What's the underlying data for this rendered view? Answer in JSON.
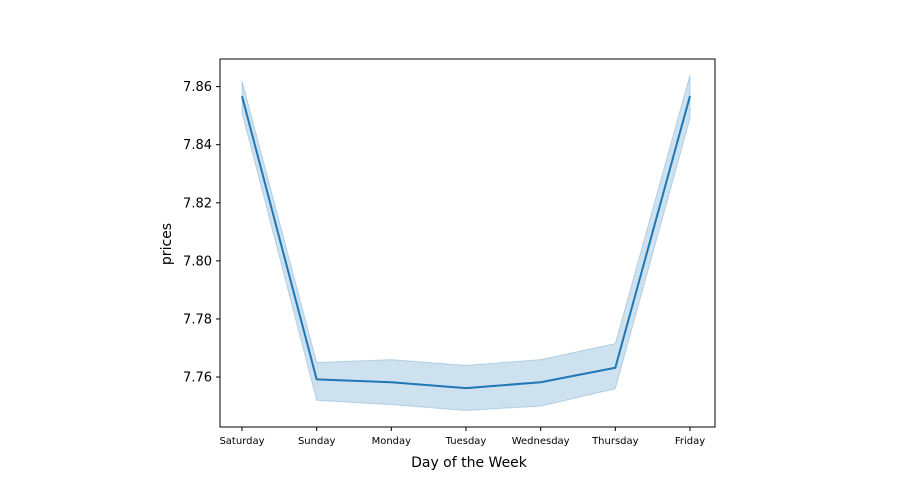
{
  "chart_data": {
    "type": "line",
    "title": "",
    "xlabel": "Day of the Week",
    "ylabel": "prices",
    "categories": [
      "Saturday",
      "Sunday",
      "Monday",
      "Tuesday",
      "Wednesday",
      "Thursday",
      "Friday"
    ],
    "series": [
      {
        "values": [
          7.8567,
          7.7592,
          7.7582,
          7.7562,
          7.7582,
          7.7632,
          7.8568
        ],
        "ci_lower": [
          7.851,
          7.752,
          7.7505,
          7.7485,
          7.75,
          7.756,
          7.849
        ],
        "ci_upper": [
          7.862,
          7.765,
          7.766,
          7.764,
          7.766,
          7.7715,
          7.864
        ],
        "color": "#1f77b4"
      }
    ],
    "ylim": [
      7.7428,
      7.8695
    ],
    "yticks": [
      7.76,
      7.78,
      7.8,
      7.82,
      7.84,
      7.86
    ],
    "ytick_labels": [
      "7.76",
      "7.78",
      "7.80",
      "7.82",
      "7.84",
      "7.86"
    ],
    "band_color": "#1f77b4",
    "grid": false,
    "legend": "none"
  }
}
